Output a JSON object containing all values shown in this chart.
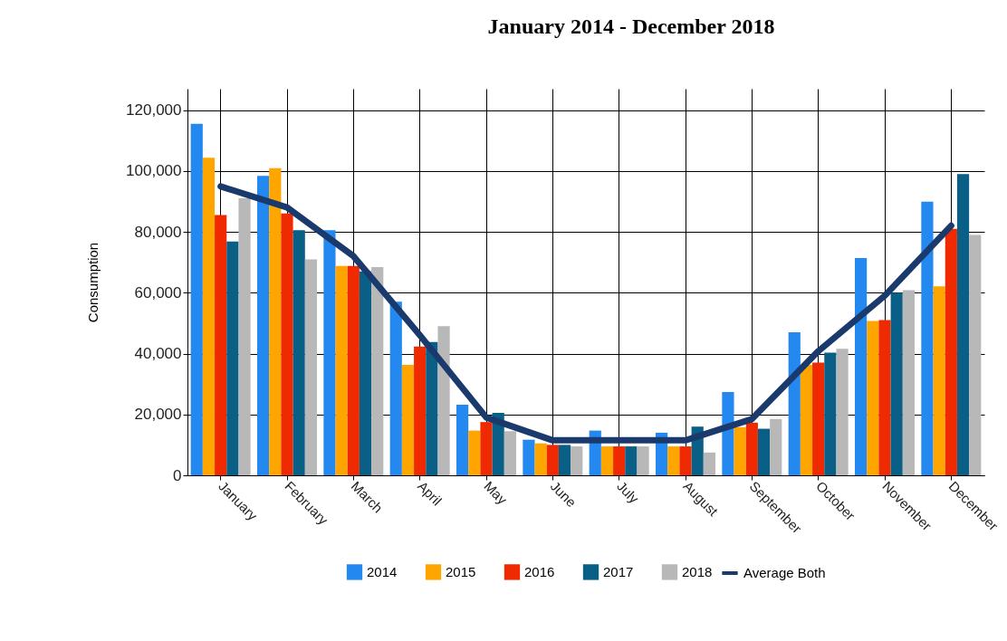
{
  "chart_data": {
    "type": "bar",
    "title": "January 2014 - December 2018",
    "ylabel": "Consumption",
    "categories": [
      "January",
      "February",
      "March",
      "April",
      "May",
      "June",
      "July",
      "August",
      "September",
      "October",
      "November",
      "December"
    ],
    "series": [
      {
        "name": "2014",
        "color": "#2389f0",
        "values": [
          115500,
          98400,
          80500,
          57000,
          23200,
          11700,
          14700,
          14000,
          27400,
          47000,
          71400,
          89900
        ]
      },
      {
        "name": "2015",
        "color": "#ffa500",
        "values": [
          104300,
          100900,
          68800,
          36300,
          14700,
          10500,
          9500,
          9500,
          15800,
          36300,
          50700,
          62100
        ]
      },
      {
        "name": "2016",
        "color": "#f02a00",
        "values": [
          85500,
          86000,
          68800,
          42300,
          17500,
          10000,
          9500,
          9500,
          17300,
          37000,
          51000,
          81000
        ]
      },
      {
        "name": "2017",
        "color": "#0a5f87",
        "values": [
          76800,
          80500,
          67000,
          43800,
          20500,
          10000,
          9500,
          16000,
          15300,
          40300,
          60000,
          99000
        ]
      },
      {
        "name": "2018",
        "color": "#b8b8b8",
        "values": [
          91000,
          70900,
          68400,
          49000,
          14500,
          9500,
          9500,
          7500,
          18500,
          41600,
          60800,
          79000
        ]
      },
      {
        "name": "Average Both",
        "type": "line",
        "color": "#1a3a6e",
        "values": [
          94900,
          88000,
          72000,
          46000,
          19000,
          11500,
          11500,
          11500,
          18500,
          40800,
          59000,
          82000
        ]
      }
    ],
    "ylim": [
      0,
      127000
    ],
    "yticks": [
      0,
      {
        "value": 20000,
        "label": "20,000"
      },
      {
        "value": 40000,
        "label": "40,000"
      },
      {
        "value": 60000,
        "label": "60,000"
      },
      {
        "value": 80000,
        "label": "80,000"
      },
      {
        "value": 100000,
        "label": "100,000"
      },
      {
        "value": 120000,
        "label": "120,000"
      }
    ],
    "grid": true,
    "legend": "bottom"
  }
}
